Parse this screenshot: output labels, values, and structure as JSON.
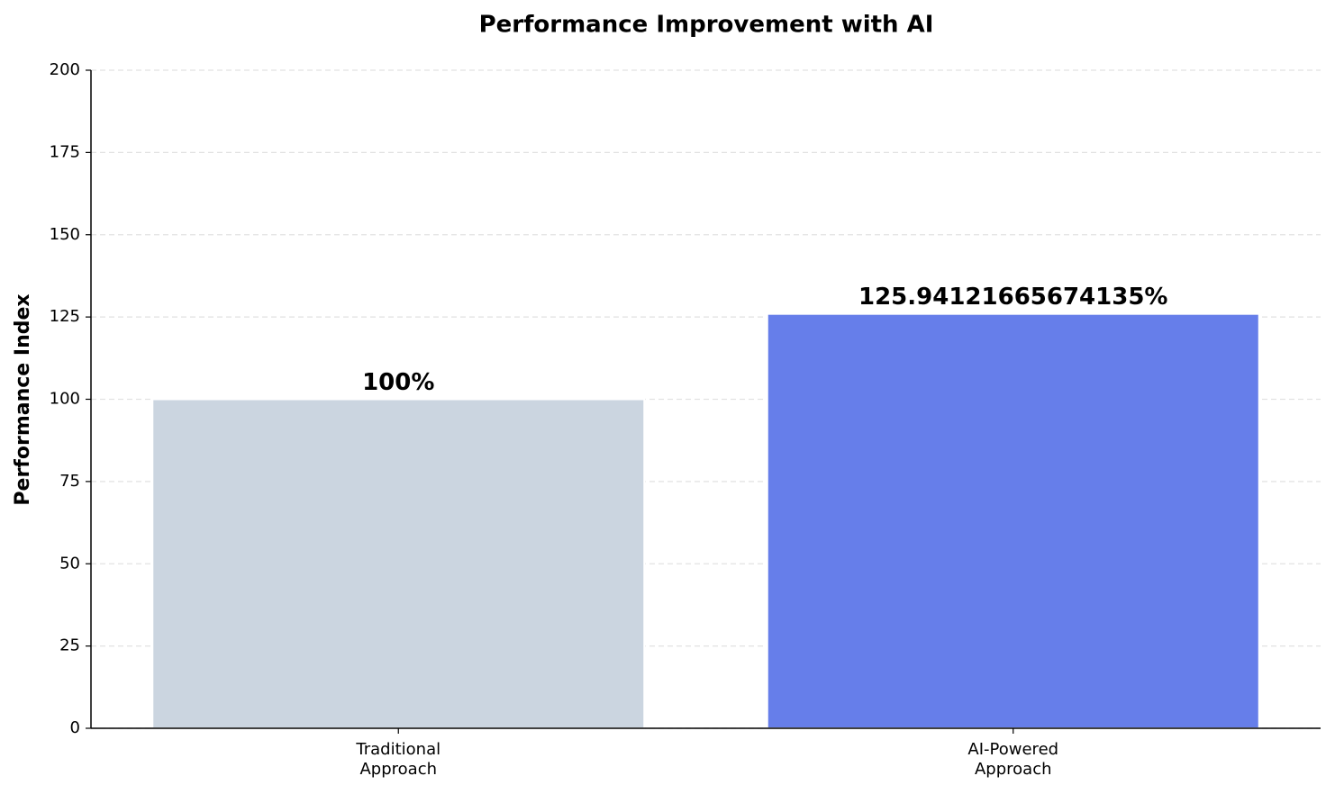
{
  "chart_data": {
    "type": "bar",
    "title": "Performance Improvement with AI",
    "y_label": "Performance Index",
    "categories": [
      "Traditional\nApproach",
      "AI-Powered\nApproach"
    ],
    "values": [
      100,
      125.94121665674135
    ],
    "value_labels": [
      "100%",
      "125.94121665674135%"
    ],
    "colors": [
      "#cbd5e0",
      "#667eea"
    ],
    "ylim": [
      0,
      200
    ],
    "yticks": [
      0,
      25,
      50,
      75,
      100,
      125,
      150,
      175,
      200
    ],
    "grid": true
  }
}
